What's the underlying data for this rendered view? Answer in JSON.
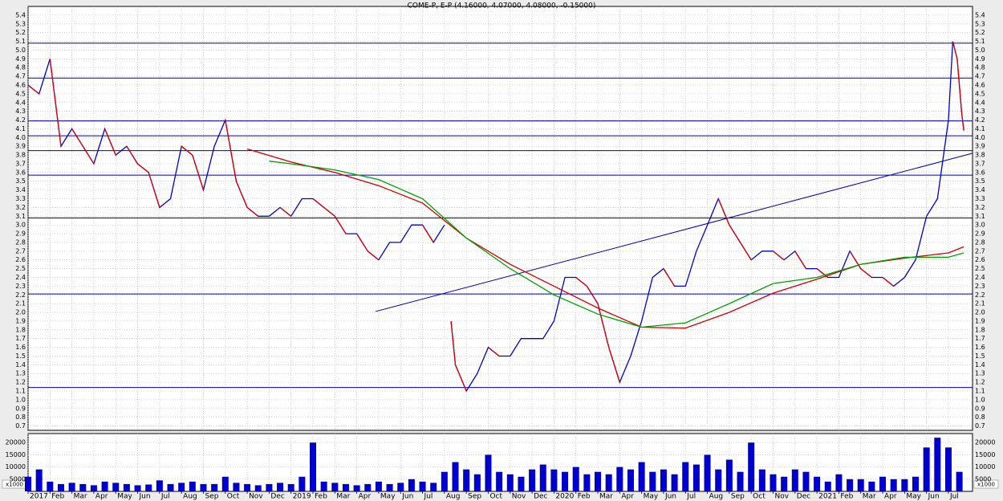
{
  "chart_data": [
    {
      "type": "line",
      "title": "COME-P, E-P (4.16000, 4.07000, 4.08000, -0.15000)",
      "xlim": [
        0,
        43.1
      ],
      "ylim": [
        0.65,
        5.5
      ],
      "yticks": [
        0.7,
        0.8,
        0.9,
        {
          "value": 1,
          "label": "1.0"
        },
        1.1,
        1.2,
        1.3,
        1.4,
        1.5,
        1.6,
        1.7,
        1.8,
        1.9,
        {
          "value": 2,
          "label": "2.0"
        },
        2.1,
        2.2,
        2.3,
        2.4,
        2.5,
        2.6,
        2.7,
        2.8,
        2.9,
        {
          "value": 3,
          "label": "3.0"
        },
        3.1,
        3.2,
        3.3,
        3.4,
        3.5,
        3.6,
        3.7,
        3.8,
        3.9,
        {
          "value": 4,
          "label": "4.0"
        },
        4.1,
        4.2,
        4.3,
        4.4,
        4.5,
        4.6,
        4.7,
        4.8,
        4.9,
        {
          "value": 5,
          "label": "5.0"
        },
        5.1,
        5.2,
        5.3,
        5.4
      ],
      "grid": true,
      "series": [
        {
          "color": "#0000cc",
          "down_color": "#dd0000",
          "x": [
            0,
            0.5,
            1,
            1.5,
            2,
            2.5,
            3,
            3.5,
            4,
            4.5,
            5,
            5.5,
            6,
            6.5,
            7,
            7.5,
            8,
            8.5,
            9,
            9.5,
            10,
            10.5,
            11,
            11.5,
            12,
            12.5,
            13,
            13.5,
            14,
            14.5,
            15,
            15.5,
            16,
            16.5,
            17,
            17.5,
            18,
            18.5,
            19,
            19.25,
            19.3,
            19.5,
            20,
            20.5,
            21,
            21.5,
            22,
            22.5,
            23,
            23.5,
            24,
            24.5,
            25,
            25.5,
            26,
            26.5,
            27,
            27.5,
            28,
            28.5,
            29,
            29.5,
            30,
            30.5,
            31,
            31.5,
            32,
            32.5,
            33,
            33.5,
            34,
            34.5,
            35,
            35.5,
            36,
            36.5,
            37,
            37.5,
            38,
            38.5,
            39,
            39.5,
            40,
            40.5,
            41,
            41.5,
            42,
            42.2,
            42.4,
            42.6,
            42.7
          ],
          "values": [
            4.6,
            4.5,
            4.9,
            3.9,
            4.1,
            3.9,
            3.7,
            4.1,
            3.8,
            3.9,
            3.7,
            3.6,
            3.2,
            3.3,
            3.9,
            3.8,
            3.4,
            3.9,
            4.2,
            3.5,
            3.2,
            3.1,
            3.1,
            3.2,
            3.1,
            3.3,
            3.3,
            3.2,
            3.1,
            2.9,
            2.9,
            2.7,
            2.6,
            2.8,
            2.8,
            3.0,
            3.0,
            2.8,
            3.0,
            null,
            1.9,
            1.4,
            1.1,
            1.3,
            1.6,
            1.5,
            1.5,
            1.7,
            1.7,
            1.7,
            1.9,
            2.4,
            2.4,
            2.3,
            2.1,
            1.6,
            1.2,
            1.5,
            1.9,
            2.4,
            2.5,
            2.3,
            2.3,
            2.7,
            3.0,
            3.3,
            3.0,
            2.8,
            2.6,
            2.7,
            2.7,
            2.6,
            2.7,
            2.5,
            2.5,
            2.4,
            2.4,
            2.7,
            2.5,
            2.4,
            2.4,
            2.3,
            2.4,
            2.6,
            3.1,
            3.3,
            4.2,
            5.1,
            4.9,
            4.3,
            4.08
          ]
        },
        {
          "color": "#cc0000",
          "x": [
            10,
            12,
            14,
            16,
            18,
            20,
            22,
            24,
            26,
            28,
            30,
            32,
            34,
            36,
            38,
            40,
            42,
            42.7
          ],
          "values": [
            3.87,
            3.72,
            3.6,
            3.45,
            3.25,
            2.85,
            2.55,
            2.3,
            2.05,
            1.83,
            1.82,
            2.0,
            2.22,
            2.38,
            2.55,
            2.62,
            2.68,
            2.75
          ]
        },
        {
          "color": "#00a000",
          "x": [
            11,
            12,
            14,
            16,
            18,
            20,
            22,
            24,
            26,
            28,
            30,
            32,
            34,
            36,
            38,
            40,
            42,
            42.7
          ],
          "values": [
            3.73,
            3.7,
            3.63,
            3.52,
            3.3,
            2.85,
            2.5,
            2.2,
            1.98,
            1.83,
            1.88,
            2.1,
            2.33,
            2.4,
            2.55,
            2.63,
            2.63,
            2.68
          ]
        }
      ],
      "hlines": [
        5.08,
        4.68,
        4.19,
        4.02,
        3.85,
        3.57,
        3.08,
        2.21,
        1.14
      ],
      "hline_color": "#0000aa",
      "trendline": {
        "x": [
          15.86,
          43.1
        ],
        "y": [
          2.01,
          3.82
        ],
        "color": "#0000aa"
      }
    },
    {
      "type": "bar",
      "ylabel": "x1000",
      "color": "#0000cc",
      "xlim": [
        0,
        43.1
      ],
      "ylim": [
        0,
        23700
      ],
      "yticks": [
        5000,
        10000,
        15000,
        20000
      ],
      "xticks": [
        {
          "value": 0,
          "label": "2017"
        },
        {
          "value": 1,
          "label": "Feb"
        },
        {
          "value": 2,
          "label": "Mar"
        },
        {
          "value": 3,
          "label": "Apr"
        },
        {
          "value": 4,
          "label": "May"
        },
        {
          "value": 5,
          "label": "Jun"
        },
        {
          "value": 6,
          "label": "Jul"
        },
        {
          "value": 7,
          "label": "Aug"
        },
        {
          "value": 8,
          "label": "Sep"
        },
        {
          "value": 9,
          "label": "Oct"
        },
        {
          "value": 10,
          "label": "Nov"
        },
        {
          "value": 11,
          "label": "Dec"
        },
        {
          "value": 12,
          "label": "2019"
        },
        {
          "value": 13,
          "label": "Feb"
        },
        {
          "value": 14,
          "label": "Mar"
        },
        {
          "value": 15,
          "label": "Apr"
        },
        {
          "value": 16,
          "label": "May"
        },
        {
          "value": 17,
          "label": "Jun"
        },
        {
          "value": 18,
          "label": "Jul"
        },
        {
          "value": 19,
          "label": "Aug"
        },
        {
          "value": 20,
          "label": "Sep"
        },
        {
          "value": 21,
          "label": "Oct"
        },
        {
          "value": 22,
          "label": "Nov"
        },
        {
          "value": 23,
          "label": "Dec"
        },
        {
          "value": 24,
          "label": "2020"
        },
        {
          "value": 25,
          "label": "Feb"
        },
        {
          "value": 26,
          "label": "Mar"
        },
        {
          "value": 27,
          "label": "Apr"
        },
        {
          "value": 28,
          "label": "May"
        },
        {
          "value": 29,
          "label": "Jun"
        },
        {
          "value": 30,
          "label": "Jul"
        },
        {
          "value": 31,
          "label": "Aug"
        },
        {
          "value": 32,
          "label": "Sep"
        },
        {
          "value": 33,
          "label": "Oct"
        },
        {
          "value": 34,
          "label": "Nov"
        },
        {
          "value": 35,
          "label": "Dec"
        },
        {
          "value": 36,
          "label": "2021"
        },
        {
          "value": 37,
          "label": "Feb"
        },
        {
          "value": 38,
          "label": "Mar"
        },
        {
          "value": 39,
          "label": "Apr"
        },
        {
          "value": 40,
          "label": "May"
        },
        {
          "value": 41,
          "label": "Jun"
        },
        {
          "value": 42,
          "label": "Jul"
        }
      ],
      "x": [
        0,
        0.5,
        1,
        1.5,
        2,
        2.5,
        3,
        3.5,
        4,
        4.5,
        5,
        5.5,
        6,
        6.5,
        7,
        7.5,
        8,
        8.5,
        9,
        9.5,
        10,
        10.5,
        11,
        11.5,
        12,
        12.5,
        13,
        13.5,
        14,
        14.5,
        15,
        15.5,
        16,
        16.5,
        17,
        17.5,
        18,
        18.5,
        19,
        19.5,
        20,
        20.5,
        21,
        21.5,
        22,
        22.5,
        23,
        23.5,
        24,
        24.5,
        25,
        25.5,
        26,
        26.5,
        27,
        27.5,
        28,
        28.5,
        29,
        29.5,
        30,
        30.5,
        31,
        31.5,
        32,
        32.5,
        33,
        33.5,
        34,
        34.5,
        35,
        35.5,
        36,
        36.5,
        37,
        37.5,
        38,
        38.5,
        39,
        39.5,
        40,
        40.5,
        41,
        41.5,
        42,
        42.5
      ],
      "values": [
        6000,
        9000,
        4000,
        3000,
        3500,
        3000,
        2500,
        4000,
        3500,
        3000,
        2500,
        2800,
        4500,
        3000,
        3500,
        4000,
        3000,
        3000,
        6000,
        3500,
        3000,
        2500,
        3000,
        3500,
        3000,
        6000,
        20000,
        4000,
        3500,
        3000,
        2500,
        3000,
        4000,
        3000,
        3500,
        5000,
        4000,
        3500,
        8000,
        12000,
        9000,
        7000,
        15000,
        8000,
        7000,
        6000,
        9000,
        11000,
        9000,
        8000,
        10000,
        7000,
        8000,
        7000,
        10000,
        9000,
        12000,
        8000,
        9000,
        7000,
        12000,
        11000,
        15000,
        9000,
        13000,
        8000,
        20000,
        9000,
        7000,
        6000,
        9000,
        8000,
        6000,
        4000,
        7000,
        5000,
        5000,
        4000,
        6000,
        5000,
        5000,
        6000,
        18000,
        22000,
        18000,
        8000
      ]
    }
  ]
}
